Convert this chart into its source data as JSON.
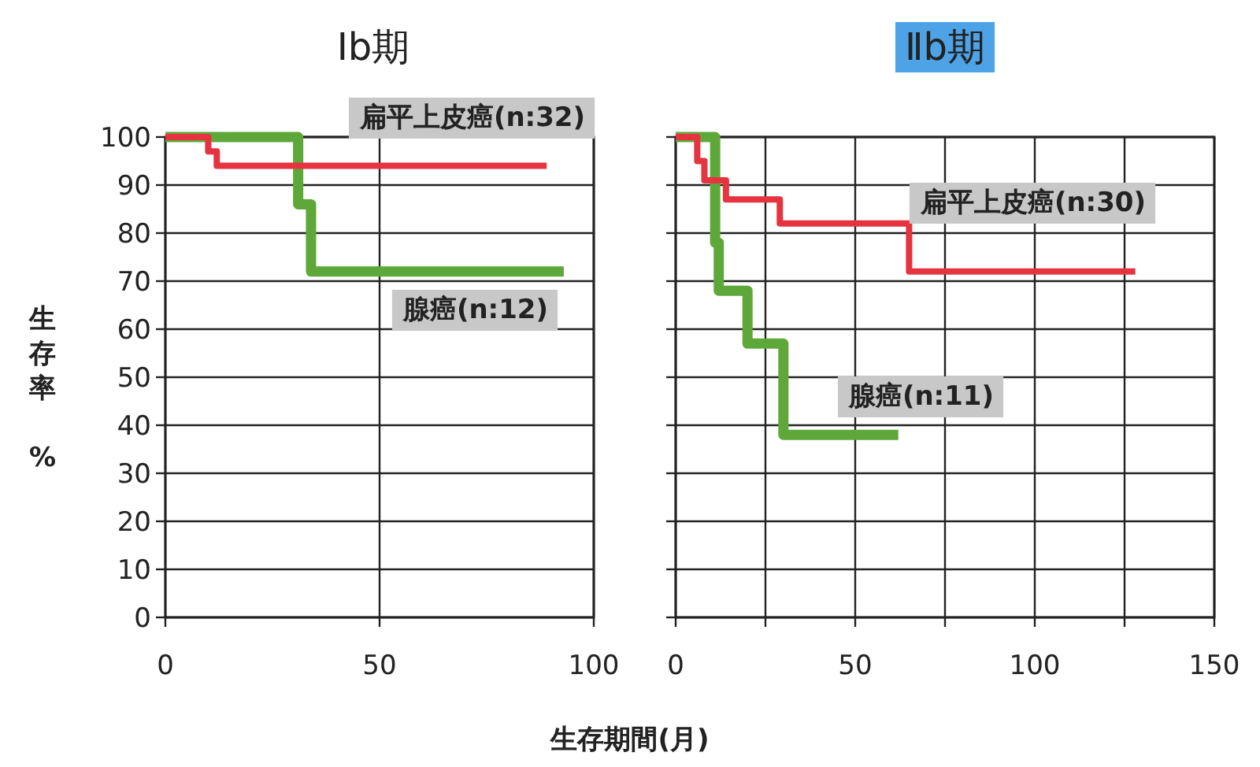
{
  "chart_data": [
    {
      "type": "step",
      "title": "Ⅰb期",
      "xlabel": "生存期間(月)",
      "ylabel": "生存率 %",
      "xlim": [
        0,
        100
      ],
      "ylim": [
        0,
        100
      ],
      "xticks": [
        0,
        50,
        100
      ],
      "yticks": [
        0,
        10,
        20,
        30,
        40,
        50,
        60,
        70,
        80,
        90,
        100
      ],
      "grid": true,
      "series": [
        {
          "name": "扁平上皮癌(n:32)",
          "color": "#e5333f",
          "x": [
            0,
            10,
            12,
            89
          ],
          "values": [
            100,
            97,
            94,
            94
          ]
        },
        {
          "name": "腺癌(n:12)",
          "color": "#5ea83a",
          "x": [
            0,
            31,
            34,
            93
          ],
          "values": [
            100,
            86,
            72,
            72
          ]
        }
      ]
    },
    {
      "type": "step",
      "title": "Ⅱb期",
      "xlim": [
        0,
        150
      ],
      "ylim": [
        0,
        100
      ],
      "xticks": [
        0,
        {
          "value": 25,
          "label": null
        },
        50,
        {
          "value": 75,
          "label": null
        },
        100,
        {
          "value": 125,
          "label": null
        },
        150
      ],
      "yticks": [
        0,
        10,
        20,
        30,
        40,
        50,
        60,
        70,
        80,
        90,
        100
      ],
      "grid": true,
      "tick_labels": "x",
      "series": [
        {
          "name": "扁平上皮癌(n:30)",
          "color": "#e5333f",
          "x": [
            0,
            6,
            8,
            14,
            29,
            65,
            128
          ],
          "values": [
            100,
            95,
            91,
            87,
            82,
            72,
            72
          ]
        },
        {
          "name": "腺癌(n:11)",
          "color": "#5ea83a",
          "x": [
            0,
            11,
            12,
            20,
            30,
            62
          ],
          "values": [
            100,
            78,
            68,
            57,
            38,
            38
          ]
        }
      ]
    }
  ]
}
